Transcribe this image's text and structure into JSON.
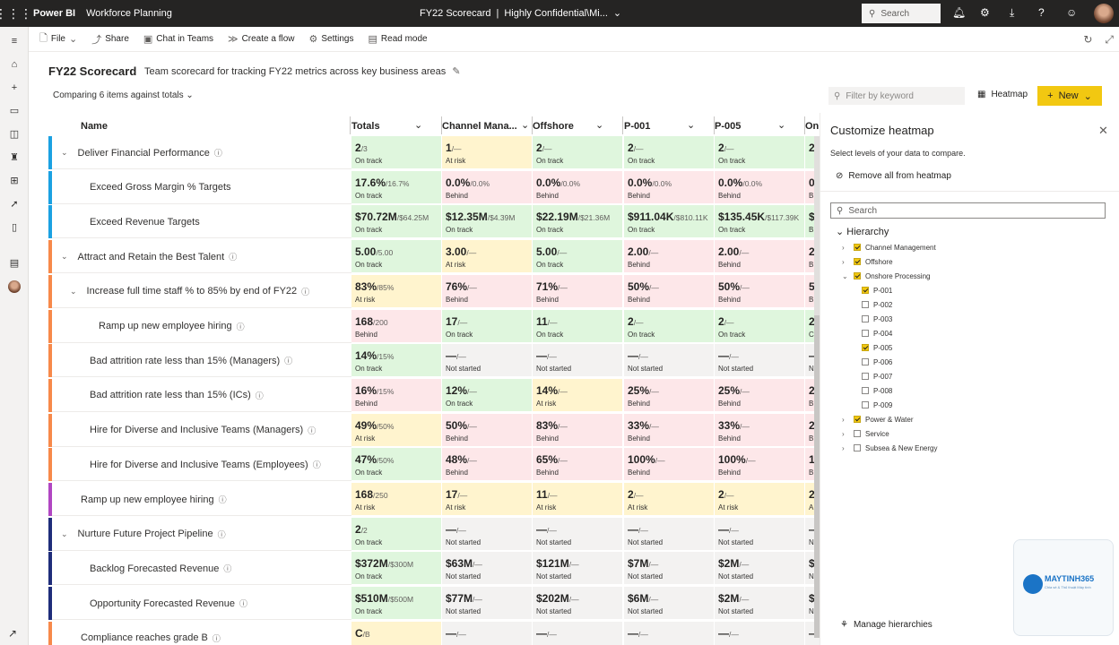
{
  "topbar": {
    "app": "Power BI",
    "workspace": "Workforce Planning",
    "scorecard_name": "FY22 Scorecard",
    "separator": "|",
    "sensitivity": "Highly Confidential\\Mi...",
    "search_placeholder": "Search"
  },
  "commands": [
    {
      "icon": "file-icon",
      "label": "File"
    },
    {
      "icon": "share-icon",
      "label": "Share"
    },
    {
      "icon": "teams-icon",
      "label": "Chat in Teams"
    },
    {
      "icon": "flow-icon",
      "label": "Create a flow"
    },
    {
      "icon": "gear-icon",
      "label": "Settings"
    },
    {
      "icon": "read-mode-icon",
      "label": "Read mode"
    }
  ],
  "header": {
    "title": "FY22 Scorecard",
    "subtitle": "Team scorecard for tracking FY22 metrics across key business areas",
    "compare": "Comparing 6 items against totals",
    "filter_placeholder": "Filter by keyword",
    "heatmap_label": "Heatmap",
    "new_label": "New"
  },
  "columns": [
    "Name",
    "Totals",
    "Channel Mana...",
    "Offshore",
    "P-001",
    "P-005",
    "On"
  ],
  "colors": {
    "accent_yellow": "#f2c811",
    "green": "#dff6dd",
    "yellow": "#fff4ce",
    "red": "#fde7e9",
    "gray": "#f3f2f1",
    "bar_blue": "#1ba1e2",
    "bar_orange": "#f7894a",
    "bar_purple": "#b146c2",
    "bar_navy": "#1f2d7a"
  },
  "rows": [
    {
      "name": "Deliver Financial Performance",
      "level": 0,
      "expand": true,
      "bar": "#1ba1e2",
      "cells": [
        [
          "2",
          "/3",
          "On track",
          "green"
        ],
        [
          "1",
          "/—",
          "At risk",
          "yellow"
        ],
        [
          "2",
          "/—",
          "On track",
          "green"
        ],
        [
          "2",
          "/—",
          "On track",
          "green"
        ],
        [
          "2",
          "/—",
          "On track",
          "green"
        ],
        [
          "2",
          "",
          "",
          " green"
        ]
      ]
    },
    {
      "name": "Exceed Gross Margin % Targets",
      "level": 1,
      "expand": false,
      "bar": "#1ba1e2",
      "cells": [
        [
          "17.6%",
          "/16.7%",
          "On track",
          "green"
        ],
        [
          "0.0%",
          "/0.0%",
          "Behind",
          "red"
        ],
        [
          "0.0%",
          "/0.0%",
          "Behind",
          "red"
        ],
        [
          "0.0%",
          "/0.0%",
          "Behind",
          "red"
        ],
        [
          "0.0%",
          "/0.0%",
          "Behind",
          "red"
        ],
        [
          "0",
          "",
          "B",
          "red"
        ]
      ]
    },
    {
      "name": "Exceed Revenue Targets",
      "level": 1,
      "expand": false,
      "bar": "#1ba1e2",
      "cells": [
        [
          "$70.72M",
          "/$64.25M",
          "On track",
          "green"
        ],
        [
          "$12.35M",
          "/$4.39M",
          "On track",
          "green"
        ],
        [
          "$22.19M",
          "/$21.36M",
          "On track",
          "green"
        ],
        [
          "$911.04K",
          "/$810.11K",
          "On track",
          "green"
        ],
        [
          "$135.45K",
          "/$117.39K",
          "On track",
          "green"
        ],
        [
          "$",
          "",
          "B",
          "green"
        ]
      ]
    },
    {
      "name": "Attract and Retain the Best Talent",
      "level": 0,
      "expand": true,
      "bar": "#f7894a",
      "cells": [
        [
          "5.00",
          "/5.00",
          "On track",
          "green"
        ],
        [
          "3.00",
          "/—",
          "At risk",
          "yellow"
        ],
        [
          "5.00",
          "/—",
          "On track",
          "green"
        ],
        [
          "2.00",
          "/—",
          "Behind",
          "red"
        ],
        [
          "2.00",
          "/—",
          "Behind",
          "red"
        ],
        [
          "2",
          "",
          "B",
          "red"
        ]
      ]
    },
    {
      "name": "Increase full time staff % to 85% by end of FY22",
      "level": 1,
      "expand": true,
      "bar": "#f7894a",
      "cells": [
        [
          "83%",
          "/85%",
          "At risk",
          "yellow"
        ],
        [
          "76%",
          "/—",
          "Behind",
          "red"
        ],
        [
          "71%",
          "/—",
          "Behind",
          "red"
        ],
        [
          "50%",
          "/—",
          "Behind",
          "red"
        ],
        [
          "50%",
          "/—",
          "Behind",
          "red"
        ],
        [
          "5",
          "",
          "B",
          "red"
        ]
      ]
    },
    {
      "name": "Ramp up new employee hiring",
      "level": 2,
      "expand": false,
      "bar": "#f7894a",
      "cells": [
        [
          "168",
          "/200",
          "Behind",
          "red"
        ],
        [
          "17",
          "/—",
          "On track",
          "green"
        ],
        [
          "11",
          "/—",
          "On track",
          "green"
        ],
        [
          "2",
          "/—",
          "On track",
          "green"
        ],
        [
          "2",
          "/—",
          "On track",
          "green"
        ],
        [
          "2",
          "",
          "C",
          "green"
        ]
      ]
    },
    {
      "name": "Bad attrition rate less than 15% (Managers)",
      "level": 1,
      "expand": false,
      "bar": "#f7894a",
      "cells": [
        [
          "14%",
          "/15%",
          "On track",
          "green"
        ],
        [
          "—",
          "/—",
          "Not started",
          "gray"
        ],
        [
          "—",
          "/—",
          "Not started",
          "gray"
        ],
        [
          "—",
          "/—",
          "Not started",
          "gray"
        ],
        [
          "—",
          "/—",
          "Not started",
          "gray"
        ],
        [
          "—",
          "",
          "N",
          "gray"
        ]
      ]
    },
    {
      "name": "Bad attrition rate less than 15% (ICs)",
      "level": 1,
      "expand": false,
      "bar": "#f7894a",
      "cells": [
        [
          "16%",
          "/15%",
          "Behind",
          "red"
        ],
        [
          "12%",
          "/—",
          "On track",
          "green"
        ],
        [
          "14%",
          "/—",
          "At risk",
          "yellow"
        ],
        [
          "25%",
          "/—",
          "Behind",
          "red"
        ],
        [
          "25%",
          "/—",
          "Behind",
          "red"
        ],
        [
          "2",
          "",
          "B",
          "red"
        ]
      ]
    },
    {
      "name": "Hire for Diverse and Inclusive Teams (Managers)",
      "level": 1,
      "expand": false,
      "bar": "#f7894a",
      "cells": [
        [
          "49%",
          "/50%",
          "At risk",
          "yellow"
        ],
        [
          "50%",
          "/—",
          "Behind",
          "red"
        ],
        [
          "83%",
          "/—",
          "Behind",
          "red"
        ],
        [
          "33%",
          "/—",
          "Behind",
          "red"
        ],
        [
          "33%",
          "/—",
          "Behind",
          "red"
        ],
        [
          "2",
          "",
          "B",
          "red"
        ]
      ]
    },
    {
      "name": "Hire for Diverse and Inclusive Teams (Employees)",
      "level": 1,
      "expand": false,
      "bar": "#f7894a",
      "cells": [
        [
          "47%",
          "/50%",
          "On track",
          "green"
        ],
        [
          "48%",
          "/—",
          "Behind",
          "red"
        ],
        [
          "65%",
          "/—",
          "Behind",
          "red"
        ],
        [
          "100%",
          "/—",
          "Behind",
          "red"
        ],
        [
          "100%",
          "/—",
          "Behind",
          "red"
        ],
        [
          "1",
          "",
          "B",
          "red"
        ]
      ]
    },
    {
      "name": "Ramp up new employee hiring",
      "level": 0,
      "expand": false,
      "bar": "#b146c2",
      "cells": [
        [
          "168",
          "/250",
          "At risk",
          "yellow"
        ],
        [
          "17",
          "/—",
          "At risk",
          "yellow"
        ],
        [
          "11",
          "/—",
          "At risk",
          "yellow"
        ],
        [
          "2",
          "/—",
          "At risk",
          "yellow"
        ],
        [
          "2",
          "/—",
          "At risk",
          "yellow"
        ],
        [
          "2",
          "",
          "A",
          "yellow"
        ]
      ]
    },
    {
      "name": "Nurture Future Project Pipeline",
      "level": 0,
      "expand": true,
      "bar": "#1f2d7a",
      "cells": [
        [
          "2",
          "/2",
          "On track",
          "green"
        ],
        [
          "—",
          "/—",
          "Not started",
          "gray"
        ],
        [
          "—",
          "/—",
          "Not started",
          "gray"
        ],
        [
          "—",
          "/—",
          "Not started",
          "gray"
        ],
        [
          "—",
          "/—",
          "Not started",
          "gray"
        ],
        [
          "—",
          "",
          "N",
          "gray"
        ]
      ]
    },
    {
      "name": "Backlog Forecasted Revenue",
      "level": 1,
      "expand": false,
      "bar": "#1f2d7a",
      "cells": [
        [
          "$372M",
          "/$300M",
          "On track",
          "green"
        ],
        [
          "$63M",
          "/—",
          "Not started",
          "gray"
        ],
        [
          "$121M",
          "/—",
          "Not started",
          "gray"
        ],
        [
          "$7M",
          "/—",
          "Not started",
          "gray"
        ],
        [
          "$2M",
          "/—",
          "Not started",
          "gray"
        ],
        [
          "$",
          "",
          "N",
          "gray"
        ]
      ]
    },
    {
      "name": "Opportunity Forecasted Revenue",
      "level": 1,
      "expand": false,
      "bar": "#1f2d7a",
      "cells": [
        [
          "$510M",
          "/$500M",
          "On track",
          "green"
        ],
        [
          "$77M",
          "/—",
          "Not started",
          "gray"
        ],
        [
          "$202M",
          "/—",
          "Not started",
          "gray"
        ],
        [
          "$6M",
          "/—",
          "Not started",
          "gray"
        ],
        [
          "$2M",
          "/—",
          "Not started",
          "gray"
        ],
        [
          "$",
          "",
          "N",
          "gray"
        ]
      ]
    },
    {
      "name": "Compliance reaches grade B",
      "level": 0,
      "expand": false,
      "bar": "#f7894a",
      "cells": [
        [
          "C",
          "/B",
          "",
          "yellow"
        ],
        [
          "—",
          "/—",
          "",
          "gray"
        ],
        [
          "—",
          "/—",
          "",
          "gray"
        ],
        [
          "—",
          "/—",
          "",
          "gray"
        ],
        [
          "—",
          "/—",
          "",
          "gray"
        ],
        [
          "—",
          "",
          "",
          "gray"
        ]
      ]
    }
  ],
  "panel": {
    "title": "Customize heatmap",
    "description": "Select levels of your data to compare.",
    "remove_all": "Remove all from heatmap",
    "search_placeholder": "Search",
    "hierarchy_label": "Hierarchy",
    "items": [
      {
        "label": "Channel Management",
        "checked": true,
        "indent": 0,
        "expander": "›"
      },
      {
        "label": "Offshore",
        "checked": true,
        "indent": 0,
        "expander": "›"
      },
      {
        "label": "Onshore Processing",
        "checked": true,
        "indent": 0,
        "expander": "⌄"
      },
      {
        "label": "P-001",
        "checked": true,
        "indent": 1,
        "expander": ""
      },
      {
        "label": "P-002",
        "checked": false,
        "indent": 1,
        "expander": ""
      },
      {
        "label": "P-003",
        "checked": false,
        "indent": 1,
        "expander": ""
      },
      {
        "label": "P-004",
        "checked": false,
        "indent": 1,
        "expander": ""
      },
      {
        "label": "P-005",
        "checked": true,
        "indent": 1,
        "expander": ""
      },
      {
        "label": "P-006",
        "checked": false,
        "indent": 1,
        "expander": ""
      },
      {
        "label": "P-007",
        "checked": false,
        "indent": 1,
        "expander": ""
      },
      {
        "label": "P-008",
        "checked": false,
        "indent": 1,
        "expander": ""
      },
      {
        "label": "P-009",
        "checked": false,
        "indent": 1,
        "expander": ""
      },
      {
        "label": "Power & Water",
        "checked": true,
        "indent": 0,
        "expander": "›"
      },
      {
        "label": "Service",
        "checked": false,
        "indent": 0,
        "expander": "›"
      },
      {
        "label": "Subsea & New Energy",
        "checked": false,
        "indent": 0,
        "expander": "›"
      }
    ],
    "manage": "Manage hierarchies"
  },
  "watermark": {
    "brand": "MAYTINH365",
    "tagline": "Chia sẻ & Thủ thuật Máy tính"
  }
}
